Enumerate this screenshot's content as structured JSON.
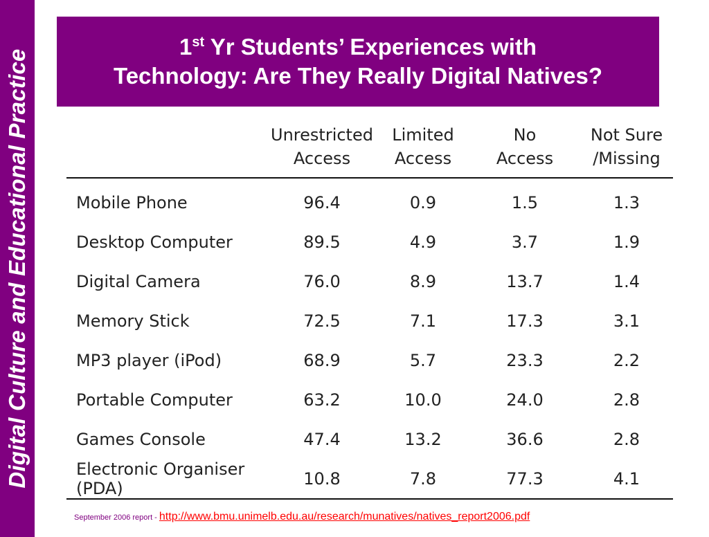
{
  "sidebar": {
    "text": "Digital Culture and Educational Practice"
  },
  "title": {
    "ordinal": "1",
    "ordinal_suffix": "st",
    "line1_rest": " Yr Students’ Experiences with",
    "line2": "Technology: Are They Really Digital Natives?"
  },
  "table": {
    "headers": [
      {
        "line1": "",
        "line2": ""
      },
      {
        "line1": "Unrestricted",
        "line2": "Access"
      },
      {
        "line1": "Limited",
        "line2": "Access"
      },
      {
        "line1": "No",
        "line2": "Access"
      },
      {
        "line1": "Not Sure",
        "line2": "/Missing"
      }
    ],
    "rows": [
      {
        "label": "Mobile Phone",
        "values": [
          "96.4",
          "0.9",
          "1.5",
          "1.3"
        ]
      },
      {
        "label": "Desktop Computer",
        "values": [
          "89.5",
          "4.9",
          "3.7",
          "1.9"
        ]
      },
      {
        "label": "Digital Camera",
        "values": [
          "76.0",
          "8.9",
          "13.7",
          "1.4"
        ]
      },
      {
        "label": "Memory Stick",
        "values": [
          "72.5",
          "7.1",
          "17.3",
          "3.1"
        ]
      },
      {
        "label": "MP3 player (iPod)",
        "values": [
          "68.9",
          "5.7",
          "23.3",
          "2.2"
        ]
      },
      {
        "label": "Portable Computer",
        "values": [
          "63.2",
          "10.0",
          "24.0",
          "2.8"
        ]
      },
      {
        "label": "Games Console",
        "values": [
          "47.4",
          "13.2",
          "36.6",
          "2.8"
        ]
      },
      {
        "label": "Electronic Organiser (PDA)",
        "values": [
          "10.8",
          "7.8",
          "77.3",
          "4.1"
        ]
      }
    ]
  },
  "footer": {
    "source_text": "September 2006 report - ",
    "link_text": "http://www.bmu.unimelb.edu.au/research/munatives/natives_report2006.pdf"
  },
  "colors": {
    "accent": "#800080",
    "link": "#ff0000",
    "text": "#222222"
  }
}
